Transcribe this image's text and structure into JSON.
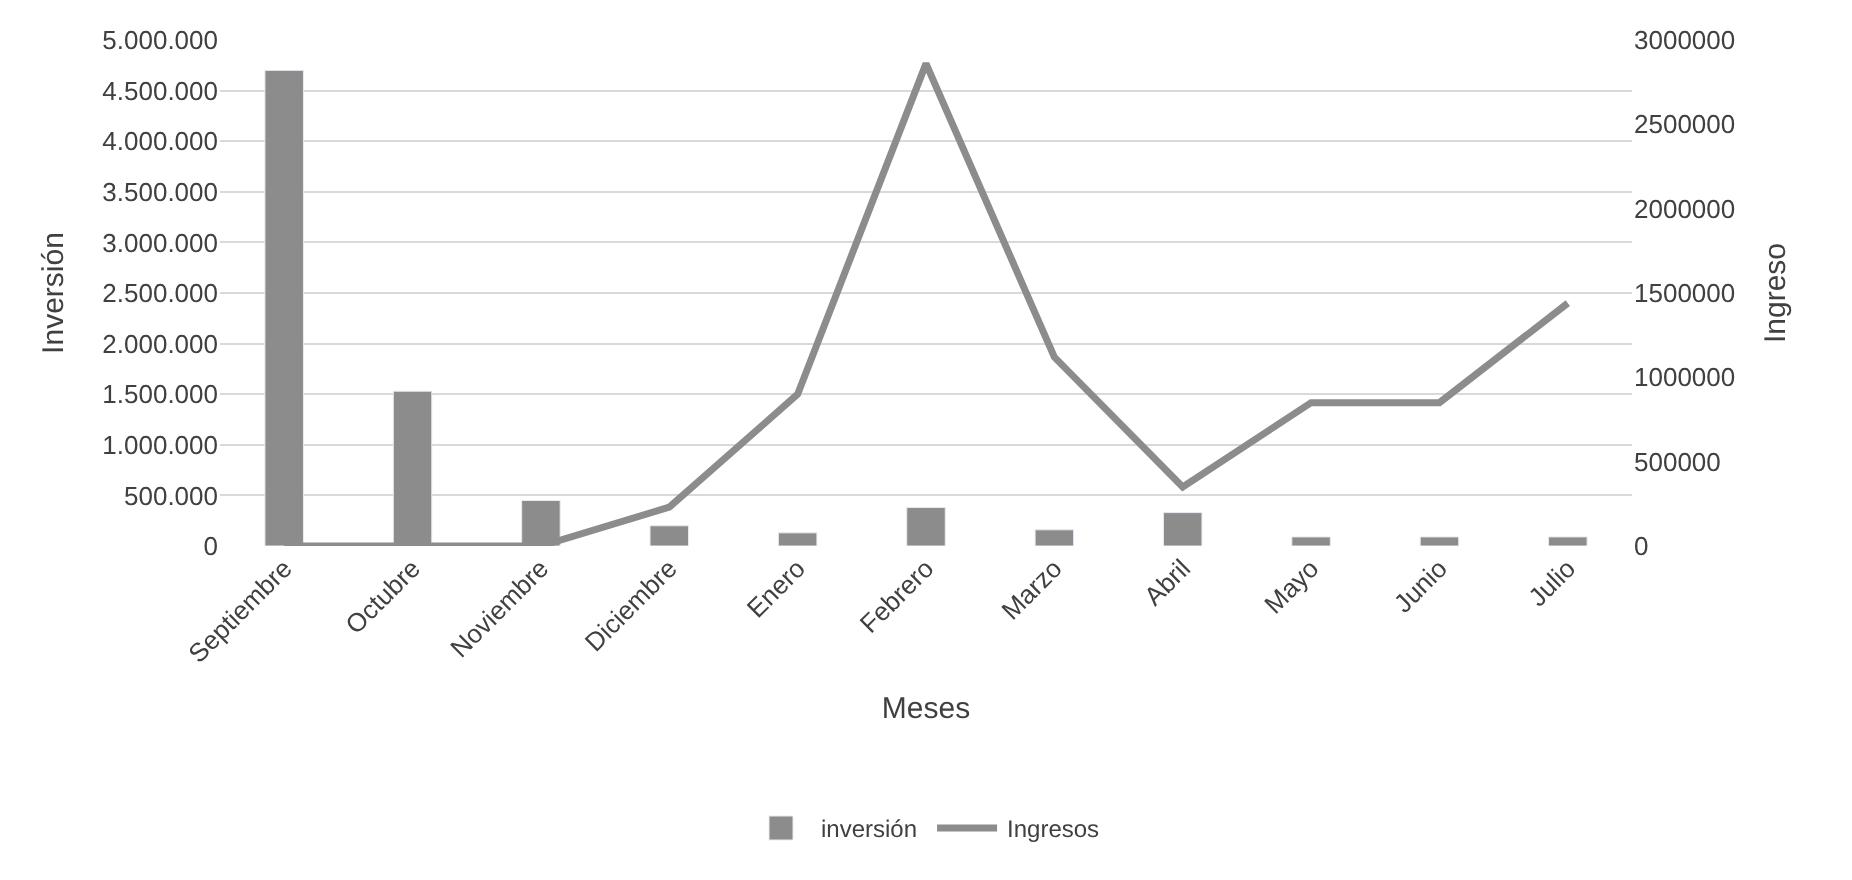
{
  "chart_data": {
    "type": "bar",
    "xlabel": "Meses",
    "ylabel": "Inversión",
    "y2label": "Ingreso",
    "categories": [
      "Septiembre",
      "Octubre",
      "Noviembre",
      "Diciembre",
      "Enero",
      "Febrero",
      "Marzo",
      "Abril",
      "Mayo",
      "Junio",
      "Julio"
    ],
    "series": [
      {
        "name": "inversión",
        "color": "#8c8c8c",
        "values": [
          4700000,
          1530000,
          450000,
          200000,
          130000,
          380000,
          160000,
          330000,
          90000,
          90000,
          90000
        ]
      },
      {
        "name": "Ingresos",
        "type": "line",
        "axis": "y2",
        "color": "#8c8c8c",
        "values": [
          0,
          0,
          0,
          230000,
          900000,
          2860000,
          1120000,
          350000,
          850000,
          850000,
          1440000
        ]
      }
    ],
    "ylim": [
      0,
      5000000
    ],
    "yticks": [
      0,
      {
        "value": 500000,
        "label": "500.000"
      },
      {
        "value": 1000000,
        "label": "1.000.000"
      },
      {
        "value": 1500000,
        "label": "1.500.000"
      },
      {
        "value": 2000000,
        "label": "2.000.000"
      },
      {
        "value": 2500000,
        "label": "2.500.000"
      },
      {
        "value": 3000000,
        "label": "3.000.000"
      },
      {
        "value": 3500000,
        "label": "3.500.000"
      },
      {
        "value": 4000000,
        "label": "4.000.000"
      },
      {
        "value": 4500000,
        "label": "4.500.000"
      },
      {
        "value": 5000000,
        "label": "5.000.000"
      }
    ],
    "y2lim": [
      0,
      3000000
    ],
    "y2ticks": [
      0,
      500000,
      1000000,
      1500000,
      2000000,
      2500000,
      3000000
    ],
    "grid": "y",
    "legend": "bottom",
    "marker": "none",
    "line_style": "solid"
  }
}
